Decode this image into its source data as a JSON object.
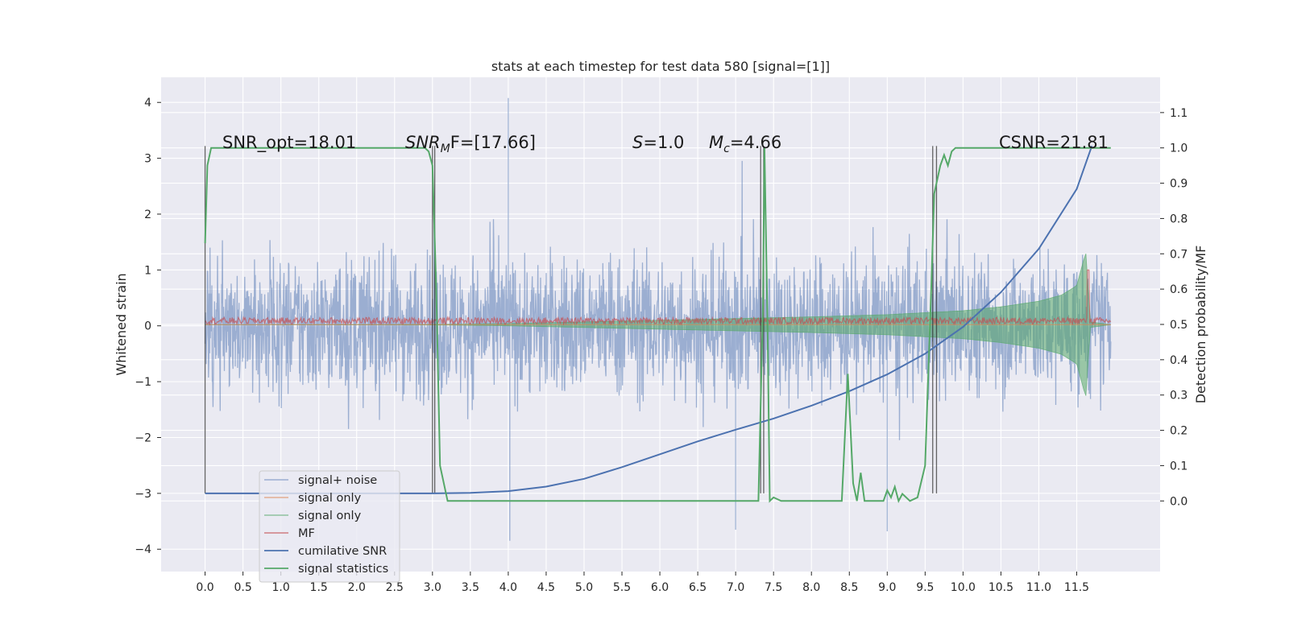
{
  "chart_data": {
    "type": "line",
    "title": "stats at each timestep for test data 580 [signal=[1]]",
    "ylabel": "Whitened strain",
    "ylabel_right": "Detection probability/MF",
    "xlim": [
      -0.58,
      12.6
    ],
    "ylim": [
      -4.4,
      4.45
    ],
    "ylim_right": [
      -0.2,
      1.2
    ],
    "x_ticks": [
      "0.0",
      "0.5",
      "1.0",
      "1.5",
      "2.0",
      "2.5",
      "3.0",
      "3.5",
      "4.0",
      "4.5",
      "5.0",
      "5.5",
      "6.0",
      "6.5",
      "7.0",
      "7.5",
      "8.0",
      "8.5",
      "9.0",
      "9.5",
      "10.0",
      "10.5",
      "11.0",
      "11.5"
    ],
    "y_ticks": [
      "4",
      "3",
      "2",
      "1",
      "0",
      "−1",
      "−2",
      "−3",
      "−4"
    ],
    "y_ticks_right": [
      "1.1",
      "1.0",
      "0.9",
      "0.8",
      "0.7",
      "0.6",
      "0.5",
      "0.4",
      "0.3",
      "0.2",
      "0.1",
      "0.0"
    ],
    "annotations": [
      {
        "id": "snr-opt",
        "text": "SNR_opt=18.01"
      },
      {
        "id": "snr-mf",
        "prefix": "SNR",
        "sub": "M",
        "suffix": "F=[17.66]"
      },
      {
        "id": "s-value",
        "prefix": "S",
        "suffix": "=1.0"
      },
      {
        "id": "mc-value",
        "prefix": "M",
        "sub": "c",
        "suffix": "=4.66"
      },
      {
        "id": "csnr",
        "text": "CSNR=21.81"
      }
    ],
    "legend": {
      "placement": "lower-left",
      "entries": [
        {
          "label": "signal+ noise",
          "color": "#4c72b0"
        },
        {
          "label": "signal only",
          "color": "#dd8452"
        },
        {
          "label": "signal only",
          "color": "#55a868"
        },
        {
          "label": "MF",
          "color": "#c44e52"
        },
        {
          "label": "cumilative SNR",
          "color": "#4c72b0"
        },
        {
          "label": "signal statistics",
          "color": "#55a868"
        }
      ]
    },
    "series": [
      {
        "name": "cumilative SNR",
        "axis": "left",
        "color": "#4c72b0",
        "x": [
          0.0,
          3.0,
          3.5,
          4.0,
          4.5,
          5.0,
          5.5,
          6.0,
          6.5,
          7.0,
          7.5,
          8.0,
          8.5,
          9.0,
          9.5,
          10.0,
          10.5,
          11.0,
          11.5,
          11.7
        ],
        "y": [
          -3.0,
          -3.0,
          -2.99,
          -2.96,
          -2.88,
          -2.74,
          -2.53,
          -2.3,
          -2.07,
          -1.86,
          -1.66,
          -1.43,
          -1.17,
          -0.87,
          -0.5,
          -0.02,
          0.6,
          1.38,
          2.45,
          3.22
        ]
      },
      {
        "name": "signal statistics",
        "axis": "right",
        "color": "#55a868",
        "x": [
          0.0,
          0.03,
          0.08,
          0.15,
          0.3,
          2.9,
          2.95,
          3.0,
          3.05,
          3.1,
          3.2,
          3.25,
          3.5,
          7.3,
          7.36,
          7.38,
          7.42,
          7.45,
          7.5,
          7.6,
          7.7,
          8.4,
          8.48,
          8.55,
          8.6,
          8.65,
          8.7,
          8.8,
          8.95,
          9.0,
          9.05,
          9.1,
          9.15,
          9.2,
          9.3,
          9.4,
          9.5,
          9.58,
          9.62,
          9.7,
          9.75,
          9.8,
          9.85,
          9.9,
          10.0,
          11.95
        ],
        "y": [
          0.73,
          0.95,
          1.0,
          1.0,
          1.0,
          1.0,
          0.99,
          0.95,
          0.6,
          0.1,
          0.0,
          0.0,
          0.0,
          0.0,
          0.55,
          1.0,
          0.5,
          0.0,
          0.01,
          0.0,
          0.0,
          0.0,
          0.36,
          0.05,
          0.0,
          0.08,
          0.0,
          0.0,
          0.0,
          0.03,
          0.01,
          0.04,
          0.0,
          0.02,
          0.0,
          0.01,
          0.1,
          0.6,
          0.87,
          0.95,
          0.98,
          0.95,
          0.99,
          1.0,
          1.0,
          1.0
        ]
      },
      {
        "name": "signal only",
        "axis": "left",
        "color": "#55a868",
        "envelope_x": [
          0.0,
          3.0,
          4.0,
          5.0,
          6.0,
          7.0,
          8.0,
          9.0,
          10.0,
          10.5,
          11.0,
          11.3,
          11.5,
          11.62,
          11.68,
          11.95
        ],
        "envelope_amplitude": [
          0.0,
          0.005,
          0.02,
          0.05,
          0.08,
          0.11,
          0.14,
          0.18,
          0.25,
          0.32,
          0.42,
          0.53,
          0.7,
          1.3,
          0.05,
          0.0
        ]
      },
      {
        "name": "signal+ noise",
        "axis": "left",
        "color": "#4c72b0",
        "x_range": [
          0.0,
          11.95
        ],
        "typical_range": [
          -2.0,
          2.0
        ],
        "extremes": [
          {
            "x": 4.0,
            "y": 4.08
          },
          {
            "x": 4.02,
            "y": -3.85
          },
          {
            "x": 7.0,
            "y": -3.65
          },
          {
            "x": 9.0,
            "y": -3.68
          }
        ]
      },
      {
        "name": "MF",
        "axis": "left",
        "color": "#c44e52",
        "baseline": 0.05,
        "peak": {
          "x": 11.65,
          "y": 1.0
        }
      }
    ],
    "vertical_markers_x": [
      0.0,
      3.0,
      3.03,
      7.33,
      7.37,
      9.6,
      9.65
    ]
  }
}
